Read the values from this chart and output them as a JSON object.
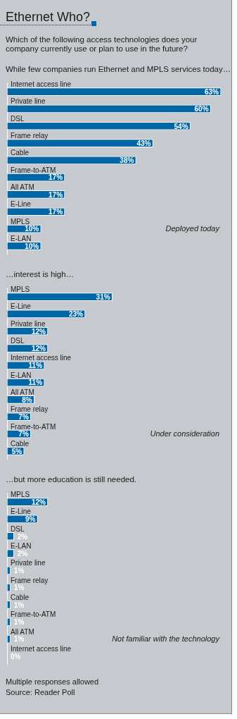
{
  "chart_data": [
    {
      "type": "bar",
      "orientation": "horizontal",
      "title": "Ethernet Who?",
      "subtitle": "Which of the following access technologies does your company currently use or plan to use in the future?",
      "annotations": [
        "While few companies run Ethernet and MPLS services today…",
        "Deployed today"
      ],
      "categories": [
        "Internet access line",
        "Private line",
        "DSL",
        "Frame relay",
        "Cable",
        "Frame-to-ATM",
        "All ATM",
        "E-Line",
        "MPLS",
        "E-LAN"
      ],
      "values": [
        63,
        60,
        54,
        43,
        38,
        17,
        17,
        17,
        10,
        10
      ],
      "value_labels": [
        "63%",
        "60%",
        "54%",
        "43%",
        "38%",
        "17%",
        "17%",
        "17%",
        "10%",
        "10%"
      ],
      "color": "#0066a6"
    },
    {
      "type": "bar",
      "orientation": "horizontal",
      "annotations": [
        "…interest is high…",
        "Under consideration"
      ],
      "categories": [
        "MPLS",
        "E-Line",
        "Private line",
        "DSL",
        "Internet access line",
        "E-LAN",
        "All ATM",
        "Frame relay",
        "Frame-to-ATM",
        "Cable"
      ],
      "values": [
        31,
        23,
        12,
        12,
        11,
        11,
        8,
        7,
        7,
        5
      ],
      "value_labels": [
        "31%",
        "23%",
        "12%",
        "12%",
        "11%",
        "11%",
        "8%",
        "7%",
        "7%",
        "5%"
      ],
      "color": "#0066a6"
    },
    {
      "type": "bar",
      "orientation": "horizontal",
      "annotations": [
        "…but more education is still needed.",
        "Not familiar with the technology",
        "Multiple responses allowed",
        "Source: Reader Poll"
      ],
      "categories": [
        "MPLS",
        "E-Line",
        "DSL",
        "E-LAN",
        "Private line",
        "Frame relay",
        "Cable",
        "Frame-to-ATM",
        "All ATM",
        "Internet access line"
      ],
      "values": [
        12,
        9,
        2,
        2,
        1,
        1,
        1,
        1,
        1,
        0
      ],
      "value_labels": [
        "12%",
        "9%",
        "2%",
        "2%",
        "1%",
        "1%",
        "1%",
        "1%",
        "1%",
        "0%"
      ],
      "color": "#0066a6"
    }
  ]
}
